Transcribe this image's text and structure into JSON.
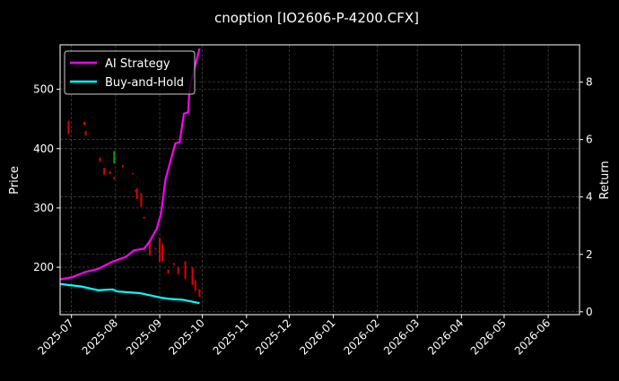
{
  "chart_data": {
    "type": "line",
    "title": "cnoption [IO2606-P-4200.CFX]",
    "xlabel": "",
    "ylabel": "Price",
    "y2label": "Return",
    "xlim": [
      "2025-06-23",
      "2026-06-23"
    ],
    "ylim": [
      120,
      575
    ],
    "y2lim": [
      -0.1,
      9.3
    ],
    "yticks": [
      200,
      300,
      400,
      500
    ],
    "y2ticks": [
      0,
      2,
      4,
      6,
      8
    ],
    "xticks": [
      "2025-07",
      "2025-08",
      "2025-09",
      "2025-10",
      "2025-11",
      "2025-12",
      "2026-01",
      "2026-02",
      "2026-03",
      "2026-04",
      "2026-05",
      "2026-06"
    ],
    "grid": true,
    "legend": {
      "placement": "top-left",
      "entries": [
        "AI Strategy",
        "Buy-and-Hold"
      ]
    },
    "series": [
      {
        "name": "AI Strategy",
        "color": "#ff00ff",
        "axis": "right",
        "x": [
          "2025-06-23",
          "2025-07-01",
          "2025-07-11",
          "2025-07-20",
          "2025-07-30",
          "2025-08-08",
          "2025-08-14",
          "2025-08-21",
          "2025-08-25",
          "2025-08-30",
          "2025-09-02",
          "2025-09-05",
          "2025-09-12",
          "2025-09-15",
          "2025-09-18",
          "2025-09-21",
          "2025-09-22",
          "2025-09-29"
        ],
        "y": [
          1.13,
          1.2,
          1.39,
          1.5,
          1.75,
          1.91,
          2.14,
          2.2,
          2.46,
          2.9,
          3.44,
          4.6,
          5.87,
          5.9,
          6.9,
          6.95,
          7.8,
          9.17
        ]
      },
      {
        "name": "Buy-and-Hold",
        "color": "#00ffff",
        "axis": "right",
        "x": [
          "2025-06-23",
          "2025-07-08",
          "2025-07-20",
          "2025-07-30",
          "2025-08-02",
          "2025-08-18",
          "2025-09-02",
          "2025-09-08",
          "2025-09-17",
          "2025-09-29"
        ],
        "y": [
          0.97,
          0.88,
          0.75,
          0.78,
          0.71,
          0.65,
          0.49,
          0.45,
          0.42,
          0.3
        ]
      }
    ],
    "candles": {
      "up_color": "#00a000",
      "down_color": "#e00000",
      "items": [
        {
          "date": "2025-06-29",
          "open": 447,
          "close": 425
        },
        {
          "date": "2025-07-10",
          "open": 445,
          "close": 440
        },
        {
          "date": "2025-07-11",
          "open": 430,
          "close": 422
        },
        {
          "date": "2025-07-21",
          "open": 385,
          "close": 378
        },
        {
          "date": "2025-07-24",
          "open": 368,
          "close": 356
        },
        {
          "date": "2025-07-28",
          "open": 362,
          "close": 357
        },
        {
          "date": "2025-07-31",
          "open": 375,
          "close": 396
        },
        {
          "date": "2025-07-31",
          "open": 352,
          "close": 348
        },
        {
          "date": "2025-08-06",
          "open": 372,
          "close": 368
        },
        {
          "date": "2025-08-13",
          "open": 359,
          "close": 357
        },
        {
          "date": "2025-08-15",
          "open": 330,
          "close": 328
        },
        {
          "date": "2025-08-16",
          "open": 333,
          "close": 315
        },
        {
          "date": "2025-08-19",
          "open": 325,
          "close": 302
        },
        {
          "date": "2025-08-21",
          "open": 285,
          "close": 282
        },
        {
          "date": "2025-08-25",
          "open": 242,
          "close": 220
        },
        {
          "date": "2025-08-29",
          "open": 232,
          "close": 230
        },
        {
          "date": "2025-09-01",
          "open": 250,
          "close": 209
        },
        {
          "date": "2025-09-03",
          "open": 240,
          "close": 210
        },
        {
          "date": "2025-09-07",
          "open": 196,
          "close": 189
        },
        {
          "date": "2025-09-11",
          "open": 207,
          "close": 204
        },
        {
          "date": "2025-09-14",
          "open": 200,
          "close": 188
        },
        {
          "date": "2025-09-19",
          "open": 210,
          "close": 180
        },
        {
          "date": "2025-09-24",
          "open": 200,
          "close": 170
        },
        {
          "date": "2025-09-26",
          "open": 178,
          "close": 160
        },
        {
          "date": "2025-09-29",
          "open": 163,
          "close": 150
        }
      ]
    }
  }
}
